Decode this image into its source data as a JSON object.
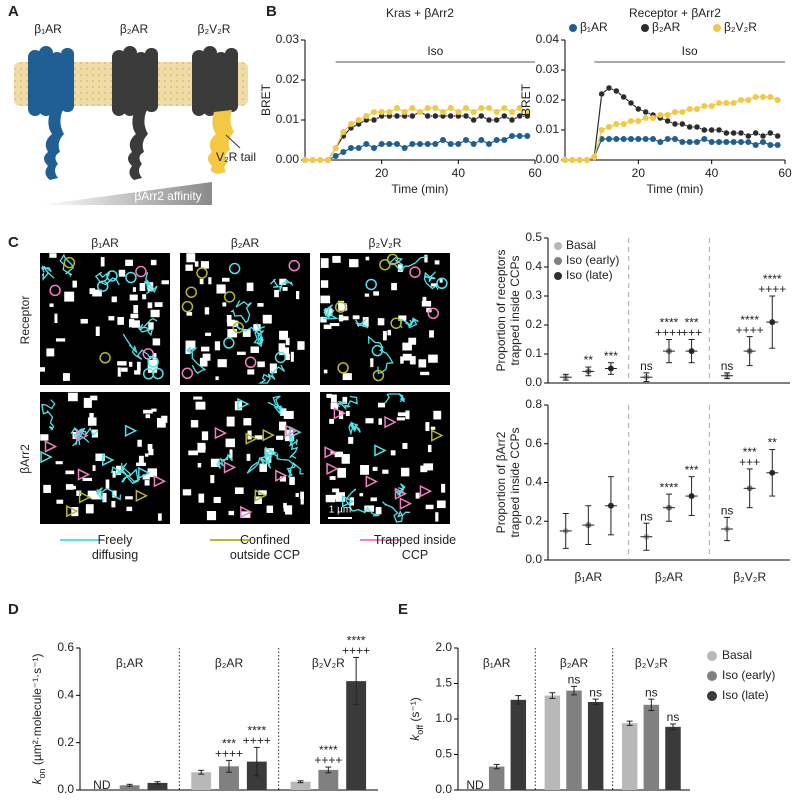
{
  "panels": [
    "A",
    "B",
    "C",
    "D",
    "E"
  ],
  "schematic": {
    "receptors": [
      "β₁AR",
      "β₂AR",
      "β₂V₂R"
    ],
    "tail_label": "V₂R tail",
    "gradient_label": "βArr2 affinity"
  },
  "microscopy": {
    "columns": [
      "β₁AR",
      "β₂AR",
      "β₂V₂R"
    ],
    "rows": [
      "Receptor",
      "βArr2"
    ],
    "scale_label": "1 µm",
    "legend": [
      {
        "label": "Freely diffusing",
        "color": "#4fe3e8"
      },
      {
        "label": "Confined outside CCP",
        "color": "#b5b82a"
      },
      {
        "label": "Trapped inside CCP",
        "color": "#f27fc0"
      }
    ]
  },
  "chart_data": [
    {
      "type": "line",
      "title": "Kras + βArr2",
      "x_label": "Time (min)",
      "y_label": "BRET",
      "x": [
        0,
        2,
        4,
        6,
        8,
        10,
        12,
        14,
        16,
        18,
        20,
        22,
        24,
        26,
        28,
        30,
        32,
        34,
        36,
        38,
        40,
        42,
        44,
        46,
        48,
        50,
        52,
        54,
        56,
        58
      ],
      "xlim": [
        0,
        60
      ],
      "xticks": [
        20,
        40,
        60
      ],
      "ylim": [
        0,
        0.03
      ],
      "yticks": [
        {
          "value": 0,
          "label": "0.00"
        },
        0.01,
        0.02,
        0.03
      ],
      "annotations": [
        {
          "text": "Iso",
          "x_start": 8,
          "x_end": 60
        }
      ],
      "series": [
        {
          "color": "#1f5f94",
          "values": [
            0,
            0,
            0,
            0,
            0.001,
            0.002,
            0.003,
            0.003,
            0.004,
            0.003,
            0.004,
            0.004,
            0.004,
            0.003,
            0.004,
            0.004,
            0.004,
            0.004,
            0.005,
            0.004,
            0.004,
            0.005,
            0.004,
            0.005,
            0.004,
            0.005,
            0.005,
            0.006,
            0.006,
            0.006
          ]
        },
        {
          "color": "#2b2b2b",
          "values": [
            0,
            0,
            0,
            0,
            0.003,
            0.006,
            0.008,
            0.009,
            0.01,
            0.01,
            0.011,
            0.011,
            0.011,
            0.011,
            0.011,
            0.012,
            0.011,
            0.011,
            0.011,
            0.011,
            0.011,
            0.011,
            0.01,
            0.011,
            0.01,
            0.01,
            0.011,
            0.01,
            0.011,
            0.011
          ]
        },
        {
          "color": "#f4c842",
          "values": [
            0,
            0,
            0,
            0,
            0.003,
            0.007,
            0.009,
            0.01,
            0.011,
            0.012,
            0.012,
            0.012,
            0.013,
            0.012,
            0.013,
            0.012,
            0.013,
            0.013,
            0.012,
            0.013,
            0.012,
            0.013,
            0.012,
            0.013,
            0.013,
            0.012,
            0.013,
            0.012,
            0.013,
            0.012
          ]
        }
      ]
    },
    {
      "type": "line",
      "title": "Receptor + βArr2",
      "x_label": "Time (min)",
      "y_label": "BRET",
      "x": [
        0,
        2,
        4,
        6,
        8,
        10,
        12,
        14,
        16,
        18,
        20,
        22,
        24,
        26,
        28,
        30,
        32,
        34,
        36,
        38,
        40,
        42,
        44,
        46,
        48,
        50,
        52,
        54,
        56,
        58
      ],
      "xlim": [
        0,
        60
      ],
      "xticks": [
        20,
        40,
        60
      ],
      "ylim": [
        0,
        0.04
      ],
      "yticks": [
        {
          "value": 0,
          "label": "0.00"
        },
        0.01,
        0.02,
        0.03,
        0.04
      ],
      "annotations": [
        {
          "text": "Iso",
          "x_start": 8,
          "x_end": 60
        }
      ],
      "legend": "top",
      "series": [
        {
          "name": "β₁AR",
          "color": "#1f5f94",
          "values": [
            0,
            0,
            0,
            0,
            0.001,
            0.007,
            0.007,
            0.007,
            0.007,
            0.007,
            0.007,
            0.007,
            0.007,
            0.006,
            0.007,
            0.007,
            0.006,
            0.006,
            0.006,
            0.007,
            0.006,
            0.006,
            0.006,
            0.006,
            0.006,
            0.006,
            0.005,
            0.006,
            0.005,
            0.005
          ]
        },
        {
          "name": "β₂AR",
          "color": "#2b2b2b",
          "values": [
            0,
            0,
            0,
            0,
            0.001,
            0.022,
            0.024,
            0.023,
            0.021,
            0.019,
            0.017,
            0.016,
            0.015,
            0.014,
            0.013,
            0.012,
            0.012,
            0.011,
            0.011,
            0.01,
            0.01,
            0.01,
            0.009,
            0.009,
            0.009,
            0.008,
            0.009,
            0.008,
            0.009,
            0.008
          ]
        },
        {
          "name": "β₂V₂R",
          "color": "#f4c842",
          "values": [
            0,
            0,
            0,
            0,
            0.001,
            0.01,
            0.011,
            0.012,
            0.012,
            0.013,
            0.013,
            0.014,
            0.014,
            0.015,
            0.015,
            0.016,
            0.016,
            0.017,
            0.017,
            0.018,
            0.018,
            0.019,
            0.019,
            0.019,
            0.02,
            0.02,
            0.021,
            0.021,
            0.021,
            0.02
          ]
        }
      ]
    },
    {
      "type": "dot",
      "y_label": [
        "Proportion of receptors",
        "trapped inside CCPs"
      ],
      "ylim": [
        0,
        0.5
      ],
      "yticks": [
        {
          "value": 0,
          "label": "0.0"
        },
        0.1,
        0.2,
        0.3,
        0.4,
        0.5
      ],
      "legend": "top-left",
      "series": [
        {
          "name": "Basal",
          "color": "#b8b8b8",
          "values": [
            0.02,
            0.02,
            0.025
          ],
          "errors": [
            0.01,
            0.015,
            0.01
          ],
          "annotations": [
            null,
            [
              "ns"
            ],
            [
              "ns"
            ]
          ]
        },
        {
          "name": "Iso (early)",
          "color": "#808080",
          "values": [
            0.04,
            0.11,
            0.11
          ],
          "errors": [
            0.015,
            0.04,
            0.05
          ],
          "annotations": [
            [
              "**"
            ],
            [
              "****",
              "++++"
            ],
            [
              "****",
              "++++"
            ]
          ]
        },
        {
          "name": "Iso (late)",
          "color": "#2e2e2e",
          "values": [
            0.05,
            0.11,
            0.21
          ],
          "errors": [
            0.02,
            0.04,
            0.09
          ],
          "annotations": [
            [
              "***"
            ],
            [
              "***",
              "+++"
            ],
            [
              "****",
              "++++"
            ]
          ]
        }
      ]
    },
    {
      "type": "dot",
      "y_label": [
        "Proportion of βArr2",
        "trapped inside CCPs"
      ],
      "categories": [
        "β₁AR",
        "β₂AR",
        "β₂V₂R"
      ],
      "ylim": [
        0,
        0.8
      ],
      "yticks": [
        {
          "value": 0,
          "label": "0.0"
        },
        0.2,
        0.4,
        0.6,
        0.8
      ],
      "series": [
        {
          "color": "#b8b8b8",
          "values": [
            0.15,
            0.12,
            0.16
          ],
          "errors": [
            0.09,
            0.07,
            0.06
          ],
          "annotations": [
            null,
            [
              "ns"
            ],
            [
              "ns"
            ]
          ]
        },
        {
          "color": "#808080",
          "values": [
            0.18,
            0.27,
            0.37
          ],
          "errors": [
            0.1,
            0.07,
            0.1
          ],
          "annotations": [
            null,
            [
              "****"
            ],
            [
              "***",
              "+++"
            ]
          ]
        },
        {
          "color": "#2e2e2e",
          "values": [
            0.28,
            0.33,
            0.45
          ],
          "errors": [
            0.15,
            0.1,
            0.12
          ],
          "annotations": [
            null,
            [
              "***"
            ],
            [
              "**"
            ]
          ]
        }
      ]
    },
    {
      "type": "bar",
      "y_label": {
        "symbol": "k",
        "subscript": "on",
        "unit": " (µm²·molecule⁻¹·s⁻¹)"
      },
      "categories": [
        "β₁AR",
        "β₂AR",
        "β₂V₂R"
      ],
      "ylim": [
        0,
        0.6
      ],
      "yticks": [
        {
          "value": 0,
          "label": "0.0"
        },
        0.2,
        0.4,
        0.6
      ],
      "series": [
        {
          "color": "#b8b8b8",
          "values": [
            null,
            0.075,
            0.035
          ],
          "errors": [
            null,
            0.008,
            0.004
          ],
          "annotations": [
            [
              "ND"
            ],
            null,
            null
          ]
        },
        {
          "color": "#808080",
          "values": [
            0.02,
            0.1,
            0.085
          ],
          "errors": [
            0.004,
            0.025,
            0.012
          ],
          "annotations": [
            null,
            [
              "***",
              "++++"
            ],
            [
              "****",
              "++++"
            ]
          ]
        },
        {
          "color": "#3a3a3a",
          "values": [
            0.03,
            0.12,
            0.46
          ],
          "errors": [
            0.005,
            0.06,
            0.1
          ],
          "annotations": [
            null,
            [
              "****",
              "++++"
            ],
            [
              "****",
              "++++"
            ]
          ]
        }
      ]
    },
    {
      "type": "bar",
      "y_label": {
        "symbol": "k",
        "subscript": "off",
        "unit": " (s⁻¹)"
      },
      "categories": [
        "β₁AR",
        "β₂AR",
        "β₂V₂R"
      ],
      "ylim": [
        0,
        2
      ],
      "yticks": [
        {
          "value": 0,
          "label": "0.0"
        },
        0.5,
        {
          "value": 1,
          "label": "1.0"
        },
        1.5,
        {
          "value": 2,
          "label": "2.0"
        }
      ],
      "legend": "right",
      "series": [
        {
          "name": "Basal",
          "color": "#b8b8b8",
          "values": [
            null,
            1.33,
            0.94
          ],
          "errors": [
            null,
            0.04,
            0.03
          ],
          "annotations": [
            [
              "ND"
            ],
            null,
            null
          ]
        },
        {
          "name": "Iso (early)",
          "color": "#808080",
          "values": [
            0.33,
            1.4,
            1.2
          ],
          "errors": [
            0.03,
            0.06,
            0.08
          ],
          "annotations": [
            null,
            [
              "ns"
            ],
            [
              "ns"
            ]
          ]
        },
        {
          "name": "Iso (late)",
          "color": "#3a3a3a",
          "values": [
            1.27,
            1.24,
            0.89
          ],
          "errors": [
            0.06,
            0.04,
            0.04
          ],
          "annotations": [
            null,
            [
              "ns"
            ],
            [
              "ns"
            ]
          ]
        }
      ]
    }
  ]
}
